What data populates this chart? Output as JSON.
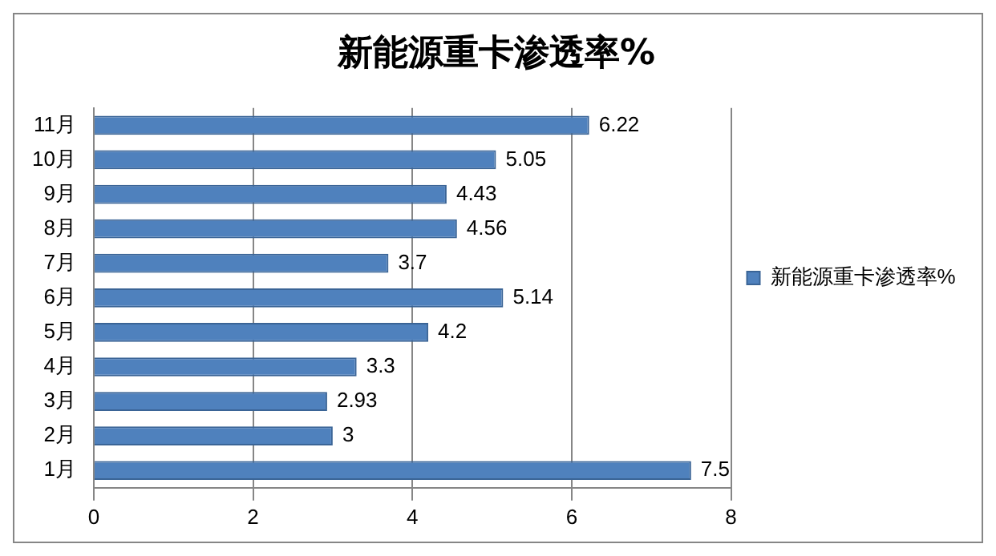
{
  "chart_data": {
    "type": "bar",
    "orientation": "horizontal",
    "title": "新能源重卡渗透率%",
    "categories": [
      "11月",
      "10月",
      "9月",
      "8月",
      "7月",
      "6月",
      "5月",
      "4月",
      "3月",
      "2月",
      "1月"
    ],
    "series": [
      {
        "name": "新能源重卡渗透率%",
        "color": "#4f81bd",
        "values": [
          6.22,
          5.05,
          4.43,
          4.56,
          3.7,
          5.14,
          4.2,
          3.3,
          2.93,
          3,
          7.5
        ]
      }
    ],
    "xlim": [
      0,
      8
    ],
    "xticks": [
      0,
      2,
      4,
      6,
      8
    ],
    "grid": "x",
    "legend": "right",
    "data_labels": true
  }
}
